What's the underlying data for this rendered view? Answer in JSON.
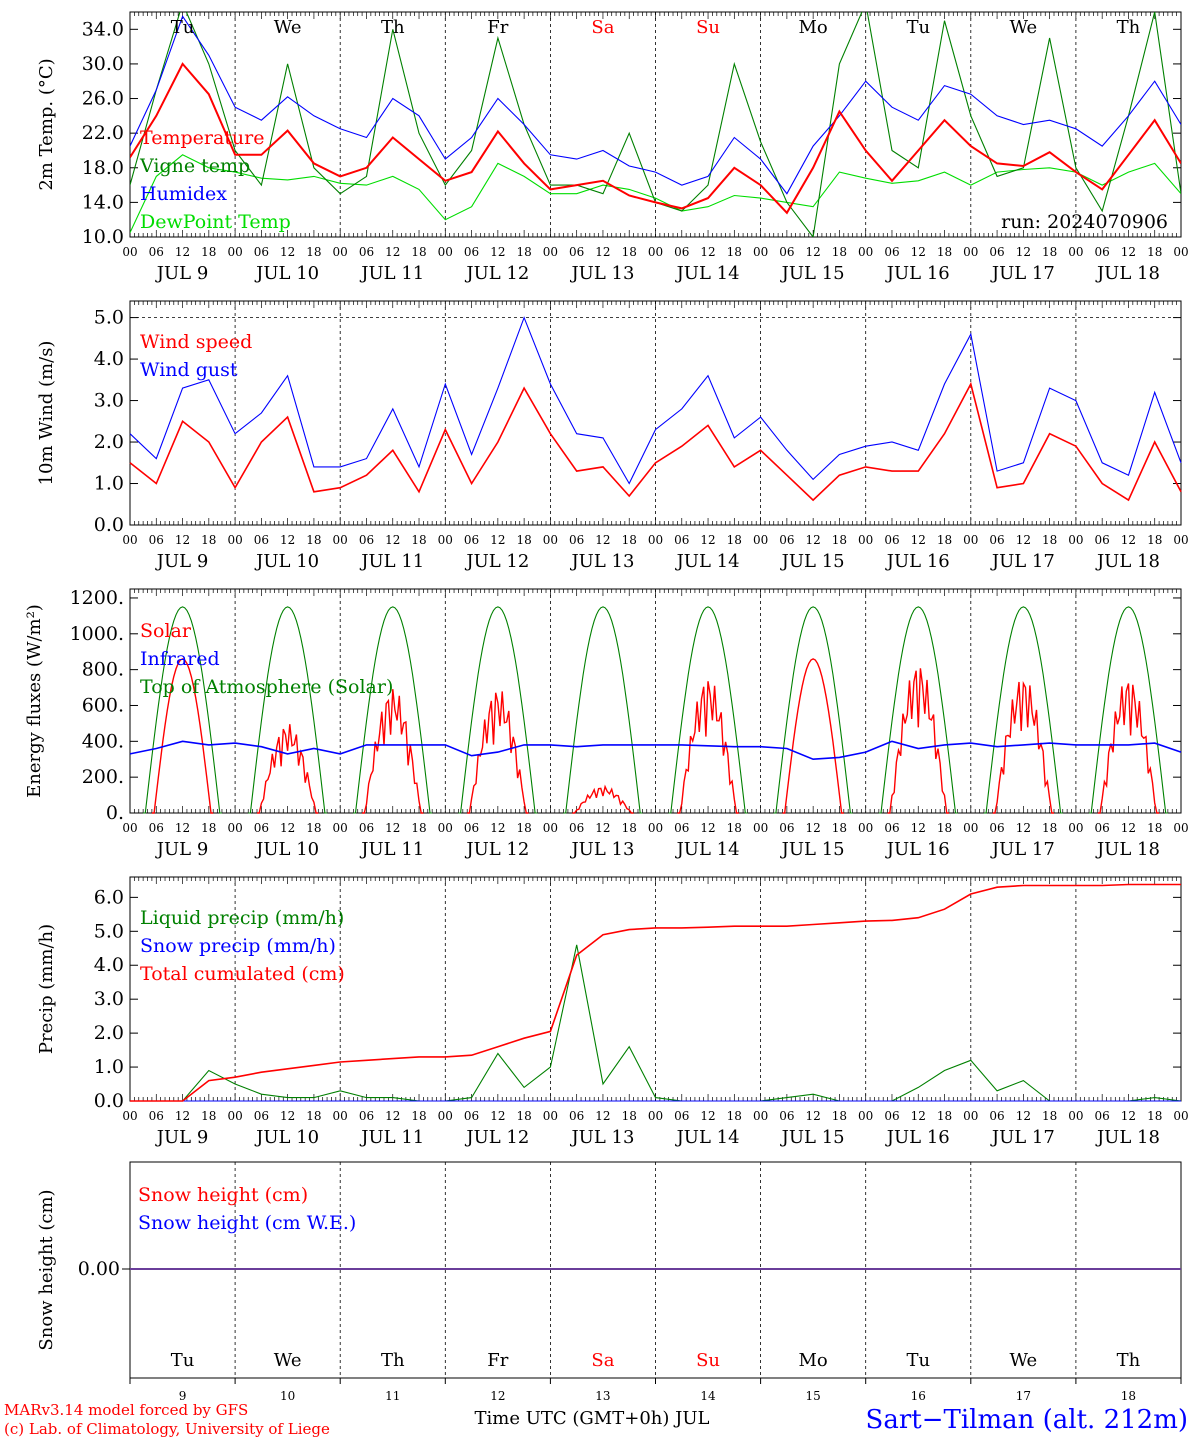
{
  "run_label": "run: 2024070906",
  "station": "Sart−Tilman (alt. 212m)",
  "credits": [
    "MARv3.14 model forced by GFS",
    "(c) Lab. of Climatology, University of Liege"
  ],
  "x_axis_title": "Time UTC (GMT+0h) JUL",
  "hour_ticks": [
    "00",
    "06",
    "12",
    "18"
  ],
  "dates": [
    "JUL  9",
    "JUL 10",
    "JUL 11",
    "JUL 12",
    "JUL 13",
    "JUL 14",
    "JUL 15",
    "JUL 16",
    "JUL 17",
    "JUL 18"
  ],
  "weekdays": [
    "Tu",
    "We",
    "Th",
    "Fr",
    "Sa",
    "Su",
    "Mo",
    "Tu",
    "We",
    "Th"
  ],
  "weekend_color": "#ff0000",
  "day_numbers": [
    "9",
    "10",
    "11",
    "12",
    "13",
    "14",
    "15",
    "16",
    "17",
    "18"
  ],
  "colors": {
    "red": "#ff0000",
    "green": "#008000",
    "blue": "#0000ff",
    "lightgreen": "#00dd00",
    "purple": "#6a3d9a"
  },
  "chart_data": [
    {
      "type": "line",
      "ylabel": "2m Temp. (°C)",
      "ylim": [
        10,
        36
      ],
      "yticks": [
        "10.0",
        "14.0",
        "18.0",
        "22.0",
        "26.0",
        "30.0",
        "34.0"
      ],
      "legend": [
        "Temperature",
        "Vigne temp",
        "Humidex",
        "DewPoint Temp"
      ],
      "x_hours": [
        0,
        6,
        12,
        18,
        24,
        30,
        36,
        42,
        48,
        54,
        60,
        66,
        72,
        78,
        84,
        90,
        96,
        102,
        108,
        114,
        120,
        126,
        132,
        138,
        144,
        150,
        156,
        162,
        168,
        174,
        180,
        186,
        192,
        198,
        204,
        210,
        216,
        222,
        228,
        234,
        240
      ],
      "series": [
        {
          "name": "Temperature",
          "color": "red",
          "values": [
            19.2,
            24,
            30,
            26.5,
            19.5,
            19.5,
            22.3,
            18.5,
            17,
            18,
            21.5,
            19,
            16.5,
            17.5,
            22.2,
            18.5,
            15.5,
            16,
            16.5,
            14.8,
            14,
            13.3,
            14.5,
            18,
            16,
            12.8,
            18,
            24.5,
            20,
            16.5,
            20,
            23.5,
            20.5,
            18.5,
            18.2,
            19.8,
            17.5,
            15.5,
            19.5,
            23.5,
            18.5
          ]
        },
        {
          "name": "Vigne temp",
          "color": "green",
          "values": [
            16,
            27,
            37,
            30,
            20,
            16,
            30,
            18,
            15,
            17,
            34,
            22,
            16,
            20,
            33,
            23,
            16,
            16,
            15,
            22,
            14,
            13,
            16,
            30,
            21,
            14,
            10,
            30,
            37,
            20,
            18,
            35,
            24,
            17,
            18,
            33,
            18,
            13,
            24,
            36,
            15
          ]
        },
        {
          "name": "Humidex",
          "color": "blue",
          "values": [
            20.5,
            27,
            35.5,
            31,
            25,
            23.5,
            26.2,
            24,
            22.5,
            21.5,
            26,
            24,
            19,
            21.5,
            26,
            23,
            19.5,
            19,
            20,
            18.2,
            17.5,
            16,
            17,
            21.5,
            19,
            15,
            20.5,
            24,
            28,
            25,
            23.5,
            27.5,
            26.5,
            24,
            23,
            23.5,
            22.5,
            20.5,
            24,
            28,
            23
          ]
        },
        {
          "name": "DewPoint Temp",
          "color": "lightgreen",
          "values": [
            10.5,
            17,
            19.5,
            18,
            17.5,
            16.8,
            16.6,
            17,
            16.2,
            16,
            17,
            15.5,
            12,
            13.5,
            18.5,
            17,
            15,
            15,
            16,
            15.5,
            14.5,
            13,
            13.5,
            14.8,
            14.5,
            14,
            13.5,
            17.5,
            16.8,
            16.2,
            16.5,
            17.5,
            16,
            17.5,
            17.8,
            18,
            17.5,
            16,
            17.5,
            18.5,
            15
          ]
        }
      ]
    },
    {
      "type": "line",
      "ylabel": "10m Wind (m/s)",
      "ylim": [
        0,
        5.4
      ],
      "yticks": [
        "0.0",
        "1.0",
        "2.0",
        "3.0",
        "4.0",
        "5.0"
      ],
      "legend": [
        "Wind speed",
        "Wind gust"
      ],
      "series": [
        {
          "name": "Wind speed",
          "color": "red",
          "values": [
            1.5,
            1.0,
            2.5,
            2.0,
            0.9,
            2.0,
            2.6,
            0.8,
            0.9,
            1.2,
            1.8,
            0.8,
            2.3,
            1.0,
            2.0,
            3.3,
            2.2,
            1.3,
            1.4,
            0.7,
            1.5,
            1.9,
            2.4,
            1.4,
            1.8,
            1.2,
            0.6,
            1.2,
            1.4,
            1.3,
            1.3,
            2.2,
            3.4,
            0.9,
            1.0,
            2.2,
            1.9,
            1.0,
            0.6,
            2.0,
            0.8
          ]
        },
        {
          "name": "Wind gust",
          "color": "blue",
          "values": [
            2.2,
            1.6,
            3.3,
            3.5,
            2.2,
            2.7,
            3.6,
            1.4,
            1.4,
            1.6,
            2.8,
            1.4,
            3.4,
            1.7,
            3.3,
            5.0,
            3.4,
            2.2,
            2.1,
            1.0,
            2.3,
            2.8,
            3.6,
            2.1,
            2.6,
            1.8,
            1.1,
            1.7,
            1.9,
            2.0,
            1.8,
            3.4,
            4.6,
            1.3,
            1.5,
            3.3,
            3.0,
            1.5,
            1.2,
            3.2,
            1.5
          ]
        }
      ]
    },
    {
      "type": "line",
      "ylabel": "Energy fluxes (W/m²)",
      "ylim": [
        0,
        1250
      ],
      "yticks": [
        "0.",
        "200.",
        "400.",
        "600.",
        "800.",
        "1000.",
        "1200."
      ],
      "legend": [
        "Solar",
        "Infrared",
        "Top of Atmosphere (Solar)"
      ],
      "toa_peak": 1150,
      "solar_peaks": [
        860,
        500,
        700,
        700,
        150,
        760,
        860,
        840,
        770,
        760
      ],
      "infrared": [
        330,
        360,
        400,
        380,
        390,
        370,
        330,
        360,
        330,
        380,
        380,
        380,
        380,
        320,
        340,
        380,
        380,
        370,
        380,
        380,
        380,
        380,
        375,
        370,
        370,
        360,
        300,
        310,
        340,
        400,
        360,
        380,
        390,
        370,
        380,
        390,
        380,
        380,
        380,
        390,
        340
      ]
    },
    {
      "type": "line",
      "ylabel": "Precip (mm/h)",
      "ylim": [
        0,
        6.6
      ],
      "yticks": [
        "0.0",
        "1.0",
        "2.0",
        "3.0",
        "4.0",
        "5.0",
        "6.0"
      ],
      "legend": [
        "Liquid precip (mm/h)",
        "Snow precip (mm/h)",
        "Total cumulated (cm)"
      ],
      "series": [
        {
          "name": "Total cumulated (cm)",
          "color": "red",
          "values": [
            0,
            0,
            0,
            0.6,
            0.7,
            0.85,
            0.95,
            1.05,
            1.15,
            1.2,
            1.25,
            1.3,
            1.3,
            1.35,
            1.6,
            1.85,
            2.05,
            4.3,
            4.9,
            5.05,
            5.1,
            5.1,
            5.12,
            5.15,
            5.15,
            5.15,
            5.2,
            5.25,
            5.3,
            5.32,
            5.4,
            5.65,
            6.1,
            6.3,
            6.35,
            6.35,
            6.35,
            6.35,
            6.38,
            6.38,
            6.38
          ]
        },
        {
          "name": "Liquid precip (mm/h)",
          "color": "green",
          "values": [
            0,
            0,
            0,
            0.9,
            0.5,
            0.2,
            0.1,
            0.1,
            0.3,
            0.1,
            0.1,
            0,
            0,
            0.1,
            1.4,
            0.4,
            1.0,
            4.6,
            0.5,
            1.6,
            0.1,
            0,
            0,
            0,
            0,
            0.1,
            0.2,
            0,
            0,
            0,
            0.4,
            0.9,
            1.2,
            0.3,
            0.6,
            0,
            0,
            0,
            0,
            0.1,
            0
          ]
        },
        {
          "name": "Snow precip (mm/h)",
          "color": "blue",
          "values": [
            0,
            0,
            0,
            0,
            0,
            0,
            0,
            0,
            0,
            0,
            0,
            0,
            0,
            0,
            0,
            0,
            0,
            0,
            0,
            0,
            0,
            0,
            0,
            0,
            0,
            0,
            0,
            0,
            0,
            0,
            0,
            0,
            0,
            0,
            0,
            0,
            0,
            0,
            0,
            0,
            0
          ]
        }
      ]
    },
    {
      "type": "line",
      "ylabel": "Snow height (cm)",
      "yticks": [
        "0.00"
      ],
      "legend": [
        "Snow height (cm)",
        "Snow height (cm W.E.)"
      ],
      "series": [
        {
          "name": "Snow height (cm)",
          "color": "red",
          "values": [
            0,
            0
          ]
        },
        {
          "name": "Snow height (cm W.E.)",
          "color": "blue",
          "values": [
            0,
            0
          ]
        }
      ]
    }
  ]
}
